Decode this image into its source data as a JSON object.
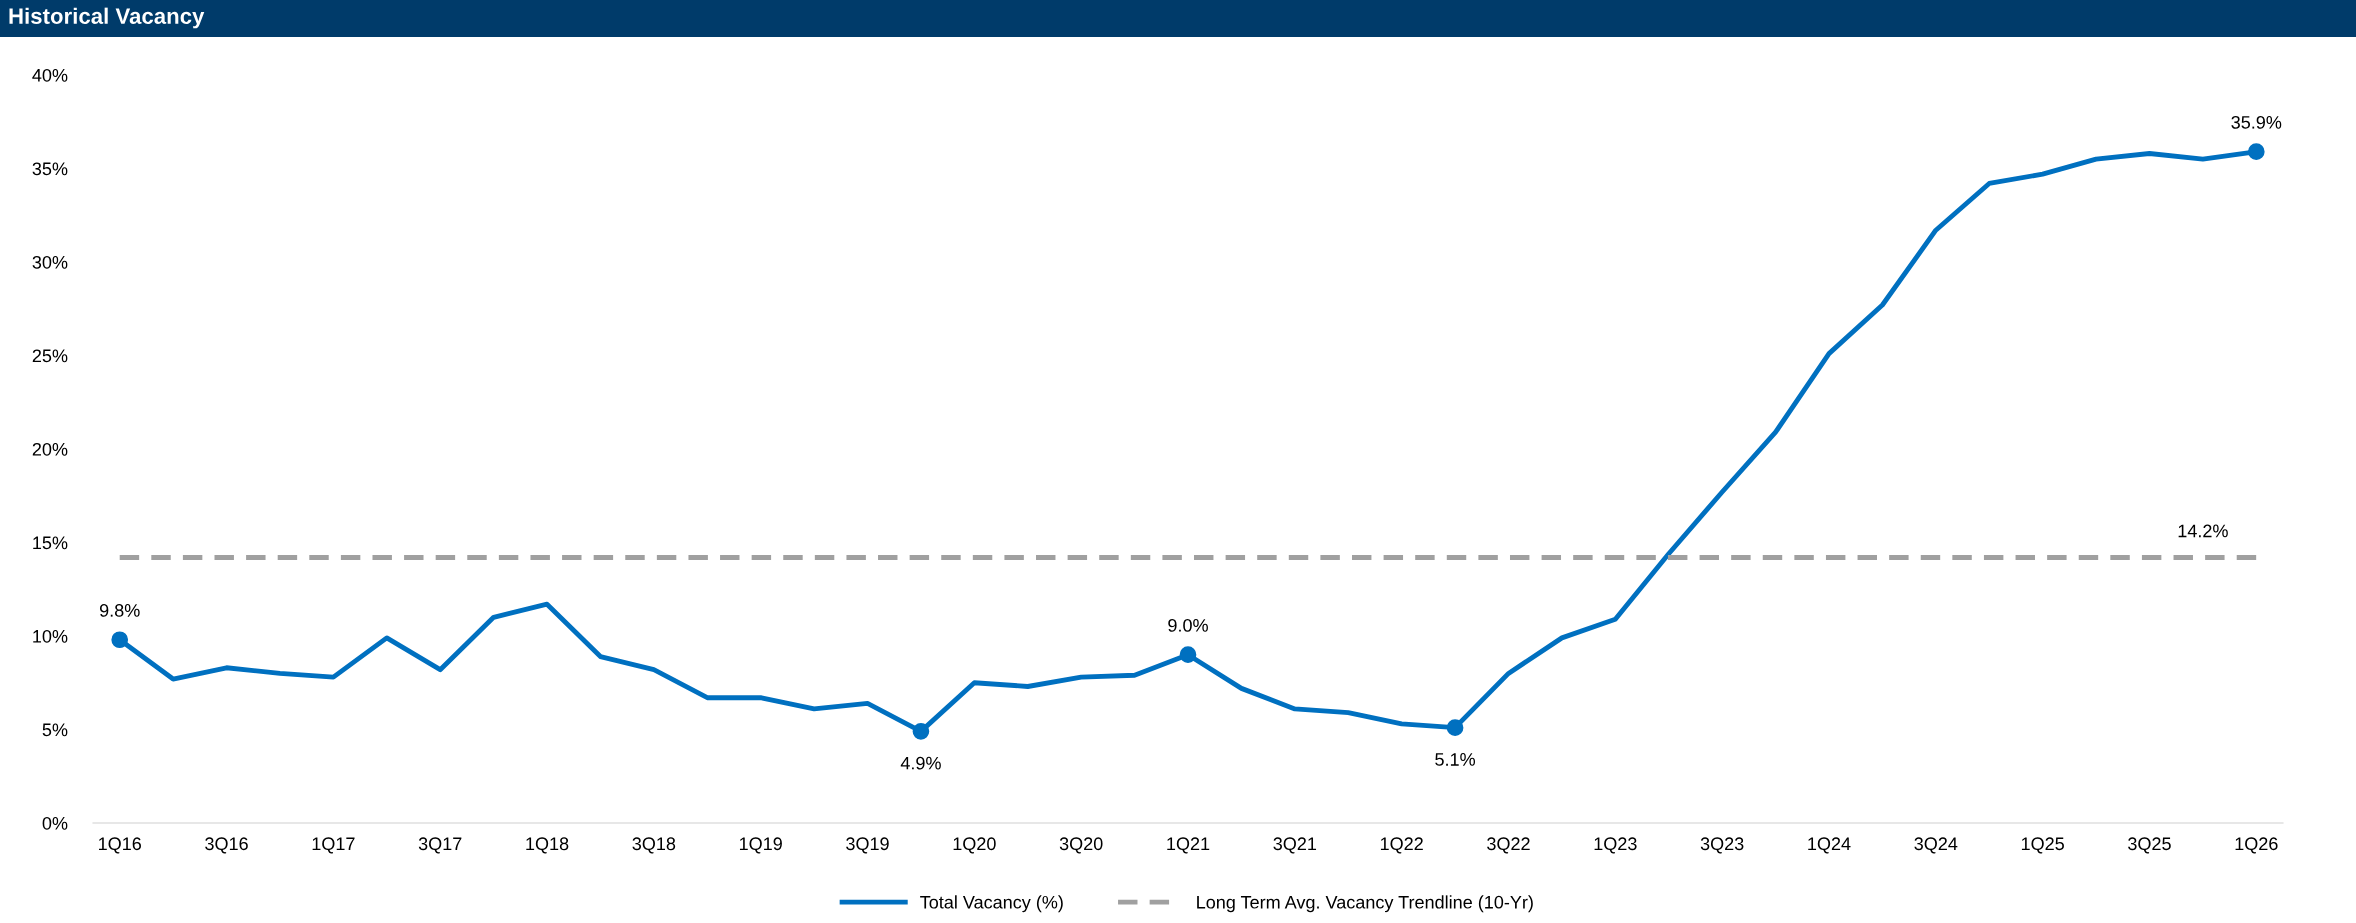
{
  "chart_data": {
    "type": "line",
    "title": "Historical Vacancy",
    "categories": [
      "1Q16",
      null,
      "3Q16",
      null,
      "1Q17",
      null,
      "3Q17",
      null,
      "1Q18",
      null,
      "3Q18",
      null,
      "1Q19",
      null,
      "3Q19",
      null,
      "1Q20",
      null,
      "3Q20",
      null,
      "1Q21",
      null,
      "3Q21",
      null,
      "1Q22",
      null,
      "3Q22",
      null,
      "1Q23",
      null,
      "3Q23",
      null,
      "1Q24",
      null,
      "3Q24",
      null,
      "1Q25",
      null,
      "3Q25",
      null,
      "1Q26"
    ],
    "series": [
      {
        "name": "Total Vacancy (%)",
        "color": "#0070c0",
        "line_style": "solid",
        "values": [
          9.8,
          7.7,
          8.3,
          8.0,
          7.8,
          9.9,
          8.2,
          11.0,
          11.7,
          8.9,
          8.2,
          6.7,
          6.7,
          6.1,
          6.4,
          4.9,
          7.5,
          7.3,
          7.8,
          7.9,
          9.0,
          7.2,
          6.1,
          5.9,
          5.3,
          5.1,
          8.0,
          9.9,
          10.9,
          14.4,
          17.7,
          20.9,
          25.1,
          27.7,
          31.7,
          34.2,
          34.7,
          35.5,
          35.8,
          35.5,
          35.9
        ],
        "value_labels": [
          "9.8%",
          null,
          null,
          null,
          null,
          null,
          null,
          null,
          null,
          null,
          null,
          null,
          null,
          null,
          null,
          "4.9%",
          null,
          null,
          null,
          null,
          "9.0%",
          null,
          null,
          null,
          null,
          "5.1%",
          null,
          null,
          null,
          null,
          null,
          null,
          null,
          null,
          null,
          null,
          null,
          null,
          null,
          null,
          "35.9%"
        ]
      },
      {
        "name": "Long Term Avg. Vacancy Trendline (10-Yr)",
        "color": "#a0a0a0",
        "line_style": "dashed",
        "values": [
          14.2,
          14.2,
          14.2,
          14.2,
          14.2,
          14.2,
          14.2,
          14.2,
          14.2,
          14.2,
          14.2,
          14.2,
          14.2,
          14.2,
          14.2,
          14.2,
          14.2,
          14.2,
          14.2,
          14.2,
          14.2,
          14.2,
          14.2,
          14.2,
          14.2,
          14.2,
          14.2,
          14.2,
          14.2,
          14.2,
          14.2,
          14.2,
          14.2,
          14.2,
          14.2,
          14.2,
          14.2,
          14.2,
          14.2,
          14.2,
          14.2
        ],
        "value_labels": [
          null,
          null,
          null,
          null,
          null,
          null,
          null,
          null,
          null,
          null,
          null,
          null,
          null,
          null,
          null,
          null,
          null,
          null,
          null,
          null,
          null,
          null,
          null,
          null,
          null,
          null,
          null,
          null,
          null,
          null,
          null,
          null,
          null,
          null,
          null,
          null,
          null,
          null,
          null,
          "14.2%",
          null
        ]
      }
    ],
    "ylim": [
      0,
      40
    ],
    "yticks": [
      {
        "value": 0,
        "label": "0%"
      },
      {
        "value": 5,
        "label": "5%"
      },
      {
        "value": 10,
        "label": "10%"
      },
      {
        "value": 15,
        "label": "15%"
      },
      {
        "value": 20,
        "label": "20%"
      },
      {
        "value": 25,
        "label": "25%"
      },
      {
        "value": 30,
        "label": "30%"
      },
      {
        "value": 35,
        "label": "35%"
      },
      {
        "value": 40,
        "label": "40%"
      }
    ],
    "grid": false,
    "legend": "bottom"
  }
}
